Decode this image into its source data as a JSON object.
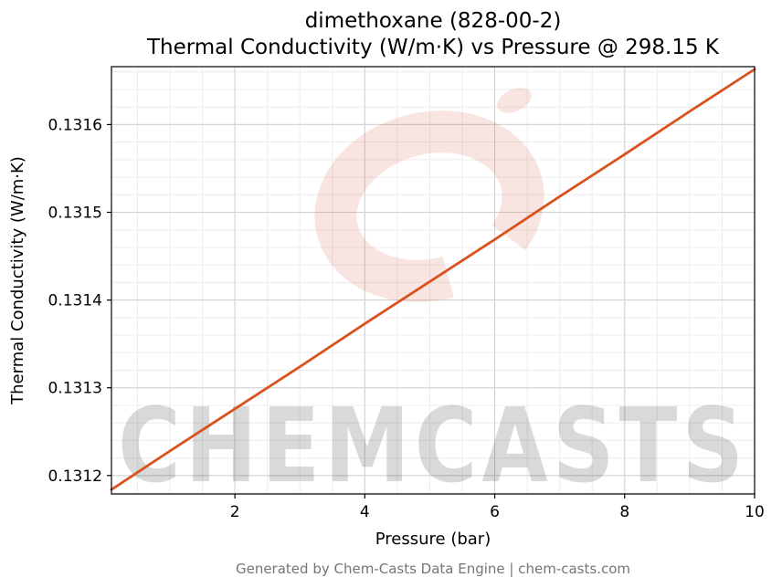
{
  "chart_data": {
    "type": "line",
    "title": "dimethoxane (828-00-2)",
    "subtitle": "Thermal Conductivity (W/m·K) vs Pressure @ 298.15 K",
    "xlabel": "Pressure (bar)",
    "ylabel": "Thermal Conductivity (W/m·K)",
    "xlim": [
      0.1,
      10
    ],
    "ylim": [
      0.131179,
      0.131666
    ],
    "grid": true,
    "legend_position": "none",
    "xticks": {
      "values": [
        2,
        4,
        6,
        8,
        10
      ],
      "labels": [
        "2",
        "4",
        "6",
        "8",
        "10"
      ]
    },
    "yticks": {
      "values": [
        0.1312,
        0.1313,
        0.1314,
        0.1315,
        0.1316
      ],
      "labels": [
        "0.1312",
        "0.1313",
        "0.1314",
        "0.1315",
        "0.1316"
      ]
    },
    "minor_x_step": 0.5,
    "minor_y_step": 2e-05,
    "series": [
      {
        "name": "thermal-conductivity-vs-pressure",
        "color": "#d9531e",
        "line_width": 2.8,
        "x": [
          0.1,
          1,
          2,
          3,
          4,
          5,
          6,
          7,
          8,
          9,
          10
        ],
        "y": [
          0.131184,
          0.131228,
          0.131276,
          0.131324,
          0.131373,
          0.131421,
          0.131469,
          0.131518,
          0.131566,
          0.131615,
          0.131663
        ]
      }
    ]
  },
  "watermark": {
    "text": "CHEMCASTS",
    "color": "#c8371f",
    "text_opacity": 0.15,
    "ring_opacity": 0.13
  },
  "footer": {
    "credit": "Generated by Chem-Casts Data Engine | chem-casts.com"
  },
  "colors": {
    "grid_major": "#d0d0d0",
    "grid_minor": "#ececec",
    "axis": "#000000",
    "footer_text": "#757575"
  }
}
